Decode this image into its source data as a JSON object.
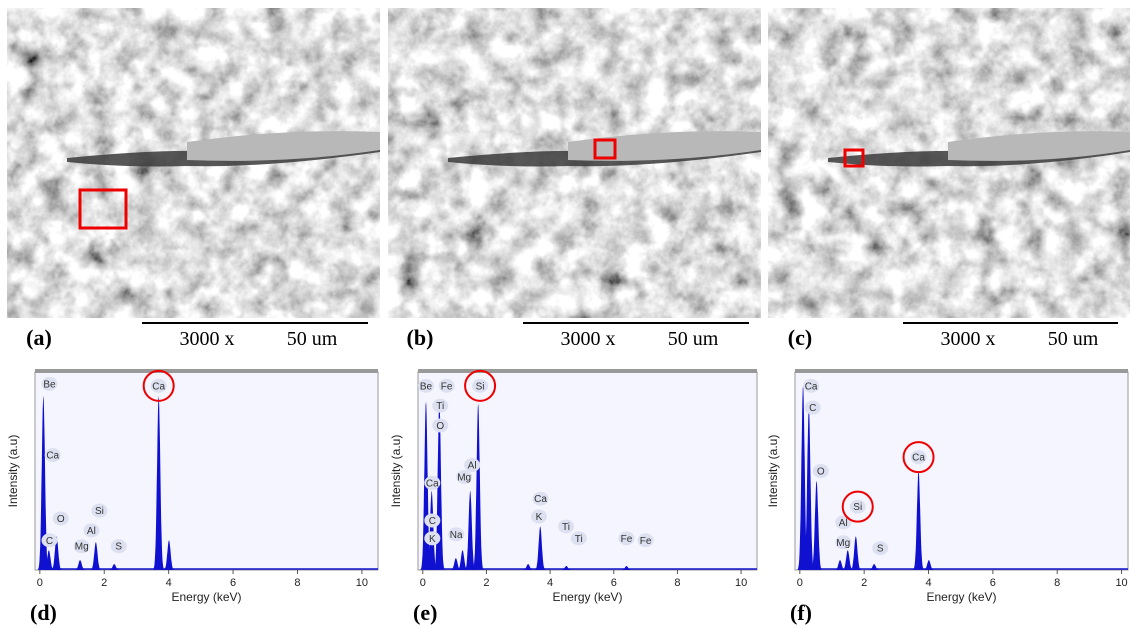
{
  "images": [
    {
      "label": "(a)",
      "magnification": "3000 x",
      "scale": "50 um"
    },
    {
      "label": "(b)",
      "magnification": "3000 x",
      "scale": "50 um"
    },
    {
      "label": "(c)",
      "magnification": "3000 x",
      "scale": "50 um"
    }
  ],
  "spectra": [
    {
      "label": "(d)",
      "xlabel": "Energy (keV)",
      "ylabel": "Intensity (a.u)",
      "xlim": [
        -0.15,
        10.5
      ],
      "ylim": [
        0,
        100
      ],
      "xticks": [
        0,
        2,
        4,
        6,
        8,
        10
      ],
      "peaks": [
        {
          "x": 0.11,
          "y": 88
        },
        {
          "x": 0.28,
          "y": 10
        },
        {
          "x": 0.52,
          "y": 17
        },
        {
          "x": 1.25,
          "y": 5
        },
        {
          "x": 1.74,
          "y": 14
        },
        {
          "x": 2.31,
          "y": 3
        },
        {
          "x": 3.69,
          "y": 88
        },
        {
          "x": 4.01,
          "y": 15
        }
      ],
      "labels": [
        {
          "text": "Be",
          "x": 0.3,
          "y": 94
        },
        {
          "text": "Ca",
          "x": 0.4,
          "y": 58
        },
        {
          "text": "C",
          "x": 0.3,
          "y": 15
        },
        {
          "text": "O",
          "x": 0.65,
          "y": 26
        },
        {
          "text": "Mg",
          "x": 1.3,
          "y": 12
        },
        {
          "text": "Al",
          "x": 1.6,
          "y": 20
        },
        {
          "text": "Si",
          "x": 1.85,
          "y": 30
        },
        {
          "text": "S",
          "x": 2.45,
          "y": 12
        },
        {
          "text": "Ca",
          "x": 3.69,
          "y": 93,
          "circled": true
        }
      ]
    },
    {
      "label": "(e)",
      "xlabel": "Energy (keV)",
      "ylabel": "Intensity (a.u)",
      "xlim": [
        -0.15,
        10.5
      ],
      "ylim": [
        0,
        100
      ],
      "xticks": [
        0,
        2,
        4,
        6,
        8,
        10
      ],
      "peaks": [
        {
          "x": 0.1,
          "y": 85
        },
        {
          "x": 0.28,
          "y": 40
        },
        {
          "x": 0.52,
          "y": 85
        },
        {
          "x": 1.04,
          "y": 6
        },
        {
          "x": 1.25,
          "y": 10
        },
        {
          "x": 1.49,
          "y": 40
        },
        {
          "x": 1.74,
          "y": 84
        },
        {
          "x": 3.31,
          "y": 3
        },
        {
          "x": 3.69,
          "y": 22
        },
        {
          "x": 4.51,
          "y": 2
        },
        {
          "x": 6.4,
          "y": 2
        }
      ],
      "labels": [
        {
          "text": "Be",
          "x": 0.1,
          "y": 93
        },
        {
          "text": "Fe",
          "x": 0.75,
          "y": 93
        },
        {
          "text": "Ti",
          "x": 0.55,
          "y": 83
        },
        {
          "text": "O",
          "x": 0.55,
          "y": 73
        },
        {
          "text": "Ca",
          "x": 0.3,
          "y": 44
        },
        {
          "text": "C",
          "x": 0.3,
          "y": 25
        },
        {
          "text": "K",
          "x": 0.3,
          "y": 16
        },
        {
          "text": "Na",
          "x": 1.05,
          "y": 18
        },
        {
          "text": "Mg",
          "x": 1.3,
          "y": 47
        },
        {
          "text": "Al",
          "x": 1.55,
          "y": 53
        },
        {
          "text": "Si",
          "x": 1.8,
          "y": 93,
          "circled": true
        },
        {
          "text": "Ca",
          "x": 3.7,
          "y": 36
        },
        {
          "text": "K",
          "x": 3.65,
          "y": 27
        },
        {
          "text": "Ti",
          "x": 4.5,
          "y": 22
        },
        {
          "text": "Ti",
          "x": 4.9,
          "y": 16
        },
        {
          "text": "Fe",
          "x": 6.4,
          "y": 16
        },
        {
          "text": "Fe",
          "x": 7.0,
          "y": 15
        }
      ]
    },
    {
      "label": "(f)",
      "xlabel": "Energy (keV)",
      "ylabel": "Intensity (a.u)",
      "xlim": [
        -0.15,
        10.2
      ],
      "ylim": [
        0,
        100
      ],
      "xticks": [
        0,
        2,
        4,
        6,
        8,
        10
      ],
      "peaks": [
        {
          "x": 0.1,
          "y": 93
        },
        {
          "x": 0.28,
          "y": 82
        },
        {
          "x": 0.52,
          "y": 45
        },
        {
          "x": 1.25,
          "y": 5
        },
        {
          "x": 1.49,
          "y": 10
        },
        {
          "x": 1.74,
          "y": 17
        },
        {
          "x": 2.31,
          "y": 3
        },
        {
          "x": 3.69,
          "y": 50
        },
        {
          "x": 4.01,
          "y": 5
        }
      ],
      "labels": [
        {
          "text": "Ca",
          "x": 0.35,
          "y": 93
        },
        {
          "text": "C",
          "x": 0.4,
          "y": 82
        },
        {
          "text": "O",
          "x": 0.65,
          "y": 50
        },
        {
          "text": "Al",
          "x": 1.35,
          "y": 24
        },
        {
          "text": "Si",
          "x": 1.8,
          "y": 32,
          "circled": true
        },
        {
          "text": "Mg",
          "x": 1.35,
          "y": 14
        },
        {
          "text": "S",
          "x": 2.5,
          "y": 11
        },
        {
          "text": "Ca",
          "x": 3.69,
          "y": 57,
          "circled": true
        }
      ]
    }
  ]
}
